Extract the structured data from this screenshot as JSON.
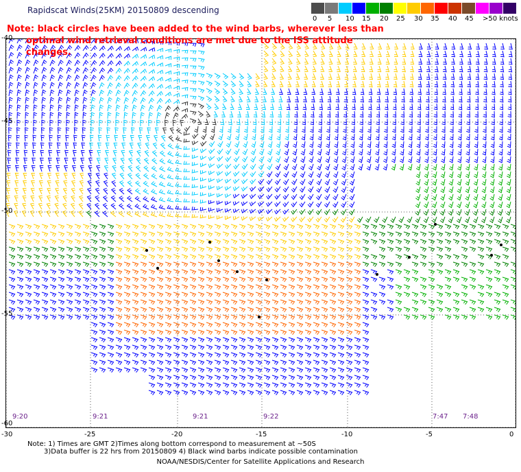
{
  "title": "Rapidscat Winds(25KM) 20150809 descending",
  "note_line1": "Note: black circles have been added to the wind barbs, wherever less than",
  "note_line2": "optimal wind retrieval conditions are met due to the ISS attitude changes.",
  "legend": {
    "labels": [
      "0",
      "5",
      "10",
      "15",
      "20",
      "25",
      "30",
      "35",
      "40",
      "45",
      ">50 knots"
    ],
    "colors": [
      "#4d4d4d",
      "#7a7a7a",
      "#00ccff",
      "#0000ff",
      "#00b000",
      "#008000",
      "#ffff00",
      "#ffcc00",
      "#ff6600",
      "#ff0000",
      "#cc3300",
      "#7a4a2a",
      "#ff00ff",
      "#9900cc",
      "#330066"
    ]
  },
  "axes": {
    "lat_labels": [
      "-40",
      "-45",
      "-50",
      "-55",
      "-60"
    ],
    "lon_labels": [
      "-30",
      "-25",
      "-20",
      "-15",
      "-10",
      "-5",
      "0"
    ]
  },
  "pass_times": [
    "9:20",
    "9:21",
    "9:21",
    "9:22",
    "7:47",
    "7:48"
  ],
  "footnote_line1": "Note: 1) Times are GMT 2)Times along bottom correspond to measurement at ~50S",
  "footnote_line2": "3)Data buffer is 22 hrs from 20150809 4) Black wind barbs indicate possible contamination",
  "credit": "NOAA/NESDIS/Center for Satellite Applications and Research"
}
